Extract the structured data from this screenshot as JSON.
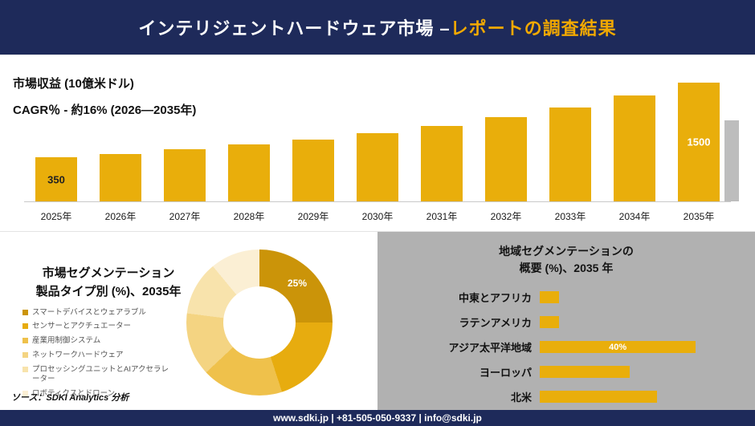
{
  "colors": {
    "navy": "#1E2A5A",
    "gold": "#E9AE0B",
    "accent_title": "#F2A900",
    "panel_gray": "#B1B1B1",
    "shadow_gray": "#BDBDBD"
  },
  "header": {
    "title_white": "インテリジェントハードウェア市場 –",
    "title_gold": "レポートの調査結果"
  },
  "revenue": {
    "metric_line": "市場収益 (10億米ドル)",
    "cagr_line": "CAGR％ - 約16% (2026―2035年)"
  },
  "segmentation": {
    "title_line1": "市場セグメンテーション",
    "title_line2": "製品タイプ別 (%)、2035年",
    "source": "ソース：SDKI Analytics 分析"
  },
  "regional": {
    "title_line1": "地域セグメンテーションの",
    "title_line2": "概要 (%)、2035 年"
  },
  "footer": {
    "text": "www.sdki.jp | +81-505-050-9337 | info@sdki.jp"
  },
  "chart_data": [
    {
      "type": "bar",
      "title": "市場収益 (10億米ドル)",
      "subtitle": "CAGR％ - 約16% (2026―2035年)",
      "categories": [
        "2025年",
        "2026年",
        "2027年",
        "2028年",
        "2029年",
        "2030年",
        "2031年",
        "2032年",
        "2033年",
        "2034年",
        "2035年"
      ],
      "values": [
        350,
        405,
        468,
        542,
        627,
        725,
        838,
        969,
        1121,
        1297,
        1500
      ],
      "value_labels": {
        "first": "350",
        "last": "1500"
      },
      "ylabel": "10億米ドル",
      "ylim": [
        0,
        1600
      ],
      "bar_color": "#E9AE0B",
      "grid": false
    },
    {
      "type": "pie",
      "donut": true,
      "title": "市場セグメンテーション 製品タイプ別 (%)、2035年",
      "categories": [
        "スマートデバイスとウェアラブル",
        "センサーとアクチュエーター",
        "産業用制御システム",
        "ネットワークハードウェア",
        "プロセッシングユニットとAIアクセラレーター",
        "ロボティクスとドローン"
      ],
      "values": [
        25,
        20,
        18,
        14,
        12,
        11
      ],
      "colors": [
        "#CB9409",
        "#E7AC0F",
        "#EFC14B",
        "#F4D482",
        "#F8E3AC",
        "#FBEFD4"
      ],
      "labeled_slice": {
        "index": 0,
        "label": "25%"
      },
      "legend_position": "left"
    },
    {
      "type": "horizontal_bar",
      "title": "地域セグメンテーションの概要 (%)、2035 年",
      "categories": [
        "中東とアフリカ",
        "ラテンアメリカ",
        "アジア太平洋地域",
        "ヨーロッパ",
        "北米"
      ],
      "values": [
        5,
        5,
        40,
        23,
        30
      ],
      "labeled_bar": {
        "index": 2,
        "label": "40%"
      },
      "bar_color": "#E9AE0B",
      "xlim": [
        0,
        42
      ],
      "grid": false
    }
  ]
}
